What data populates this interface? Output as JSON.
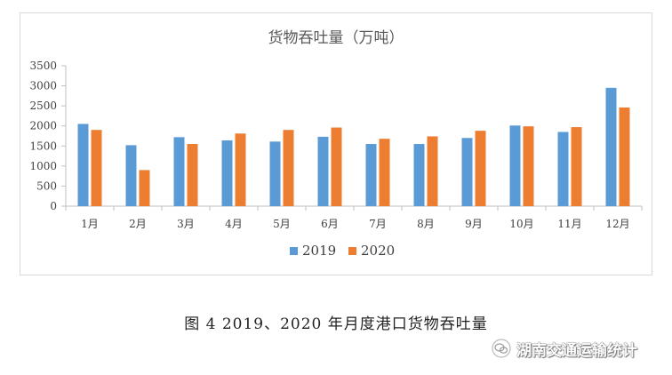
{
  "chart_data": {
    "type": "bar",
    "title": "货物吞吐量（万吨）",
    "categories": [
      "1月",
      "2月",
      "3月",
      "4月",
      "5月",
      "6月",
      "7月",
      "8月",
      "9月",
      "10月",
      "11月",
      "12月"
    ],
    "series": [
      {
        "name": "2019",
        "color": "#5b9bd5",
        "values": [
          2050,
          1520,
          1720,
          1640,
          1610,
          1730,
          1550,
          1550,
          1700,
          2010,
          1850,
          2950
        ]
      },
      {
        "name": "2020",
        "color": "#ed7d31",
        "values": [
          1900,
          900,
          1550,
          1810,
          1900,
          1960,
          1680,
          1740,
          1880,
          1990,
          1970,
          2460
        ]
      }
    ],
    "yticks": [
      "0",
      "500",
      "1000",
      "1500",
      "2000",
      "2500",
      "3000",
      "3500"
    ],
    "ylim": [
      0,
      3500
    ],
    "xlabel": "",
    "ylabel": "",
    "grid": false,
    "legend": "bottom"
  },
  "caption": "图 4  2019、2020 年月度港口货物吞吐量",
  "watermark": {
    "text": "湖南交通运输统计",
    "icon": "wechat-icon"
  }
}
